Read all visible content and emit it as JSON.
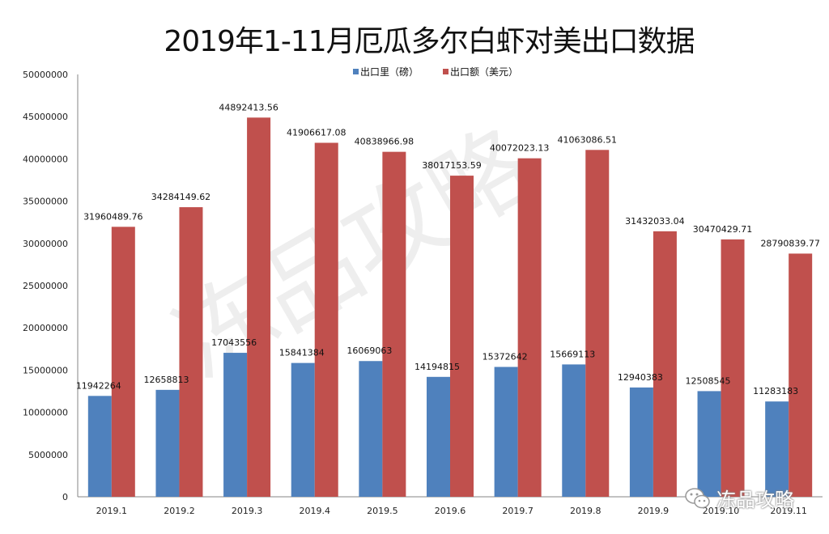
{
  "chart_data": {
    "type": "bar",
    "title": "2019年1-11月厄瓜多尔白虾对美出口数据",
    "xlabel": "",
    "ylabel": "",
    "ylim": [
      0,
      50000000
    ],
    "yticks": [
      "0",
      "5000000",
      "10000000",
      "15000000",
      "20000000",
      "25000000",
      "30000000",
      "35000000",
      "40000000",
      "45000000",
      "50000000"
    ],
    "ytick_values": [
      0,
      5000000,
      10000000,
      15000000,
      20000000,
      25000000,
      30000000,
      35000000,
      40000000,
      45000000,
      50000000
    ],
    "grid": false,
    "legend_position": "top-center",
    "categories": [
      "2019.1",
      "2019.2",
      "2019.3",
      "2019.4",
      "2019.5",
      "2019.6",
      "2019.7",
      "2019.8",
      "2019.9",
      "2019.10",
      "2019.11"
    ],
    "series": [
      {
        "name": "出口里（磅）",
        "color": "#4f81bd",
        "values": [
          11942264,
          12658813,
          17043556,
          15841384,
          16069063,
          14194815,
          15372642,
          15669113,
          12940383,
          12508545,
          11283183
        ],
        "labels": [
          "11942264",
          "12658813",
          "17043556",
          "15841384",
          "16069063",
          "14194815",
          "15372642",
          "15669113",
          "12940383",
          "12508545",
          "11283183"
        ]
      },
      {
        "name": "出口额（美元）",
        "color": "#c0504d",
        "values": [
          31960489.76,
          34284149.62,
          44892413.56,
          41906617.08,
          40838966.98,
          38017153.59,
          40072023.13,
          41063086.51,
          31432033.04,
          30470429.71,
          28790839.77
        ],
        "labels": [
          "31960489.76",
          "34284149.62",
          "44892413.56",
          "41906617.08",
          "40838966.98",
          "38017153.59",
          "40072023.13",
          "41063086.51",
          "31432033.04",
          "30470429.71",
          "28790839.77"
        ]
      }
    ]
  },
  "watermark": "冻品攻略",
  "logo": {
    "icon": "wechat-icon",
    "text": "冻品攻略"
  }
}
